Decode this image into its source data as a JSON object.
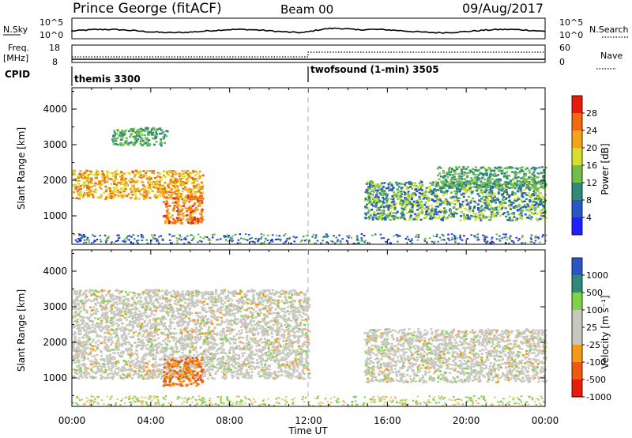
{
  "header": {
    "station": "Prince George (fitACF)",
    "beam": "Beam 00",
    "date": "09/Aug/2017"
  },
  "noise_panel": {
    "left_label": "N.Sky",
    "right_label": "N.Search",
    "left_ticks": [
      "10^5",
      "10^0"
    ],
    "right_ticks": [
      "10^5",
      "10^0"
    ]
  },
  "freq_panel": {
    "left_label_1": "Freq.",
    "left_label_2": "[MHz]",
    "left_ticks": [
      "18",
      "8"
    ],
    "right_label": "Nave",
    "right_ticks": [
      "60",
      "0"
    ]
  },
  "cpid": {
    "label": "CPID",
    "segments": [
      {
        "name": "themis 3300",
        "start_hour": 0
      },
      {
        "name": "twofsound (1-min) 3505",
        "start_hour": 12
      }
    ]
  },
  "x_axis": {
    "label": "Time UT",
    "ticks": [
      "00:00",
      "04:00",
      "08:00",
      "12:00",
      "16:00",
      "20:00",
      "00:00"
    ]
  },
  "power_panel": {
    "ylabel": "Slant Range [km]",
    "yticks": [
      "4000",
      "3000",
      "2000",
      "1000"
    ],
    "colorbar_label": "Power [dB]",
    "colorbar_ticks": [
      "28",
      "24",
      "20",
      "16",
      "12",
      "8",
      "4"
    ]
  },
  "velocity_panel": {
    "ylabel": "Slant Range [km]",
    "yticks": [
      "4000",
      "3000",
      "2000",
      "1000"
    ],
    "colorbar_label": "Velocity [m s⁻¹]",
    "colorbar_ticks": [
      "1000",
      "500",
      "100",
      "25",
      "-25",
      "-100",
      "-500",
      "-1000"
    ]
  },
  "colors": {
    "power_scale": [
      "#1f1fff",
      "#2a56c8",
      "#2f8a7a",
      "#6fbf4a",
      "#d6e02c",
      "#f2a51a",
      "#f06a10",
      "#e81b0c"
    ],
    "velocity_scale": [
      "#e81b0c",
      "#f05a10",
      "#f29a1a",
      "#c8c8c0",
      "#c8c8c0",
      "#7ed34a",
      "#2f8a7a",
      "#2a56c8"
    ]
  },
  "chart_data": {
    "type": "heatmap",
    "x_range_hours": [
      0,
      24
    ],
    "y_range_km": [
      200,
      4600
    ],
    "grid": false,
    "power_features": [
      {
        "hours": [
          0,
          6.6
        ],
        "range_km": [
          1500,
          2300
        ],
        "power_db": "16-28"
      },
      {
        "hours": [
          4.6,
          6.6
        ],
        "range_km": [
          800,
          1600
        ],
        "power_db": "20-30"
      },
      {
        "hours": [
          2.0,
          4.8
        ],
        "range_km": [
          3000,
          3500
        ],
        "power_db": "8-16"
      },
      {
        "hours": [
          14.8,
          24
        ],
        "range_km": [
          900,
          2000
        ],
        "power_db": "4-20"
      },
      {
        "hours": [
          18.5,
          24
        ],
        "range_km": [
          1800,
          2400
        ],
        "power_db": "8-16"
      }
    ],
    "velocity_features": [
      {
        "hours": [
          0,
          12
        ],
        "range_km": [
          1000,
          3500
        ],
        "velocity_ms": "-25 to 25"
      },
      {
        "hours": [
          4.6,
          6.6
        ],
        "range_km": [
          800,
          1600
        ],
        "velocity_ms": "-500 to -100"
      },
      {
        "hours": [
          14.8,
          24
        ],
        "range_km": [
          900,
          2400
        ],
        "velocity_ms": "-25 to 25"
      }
    ]
  }
}
